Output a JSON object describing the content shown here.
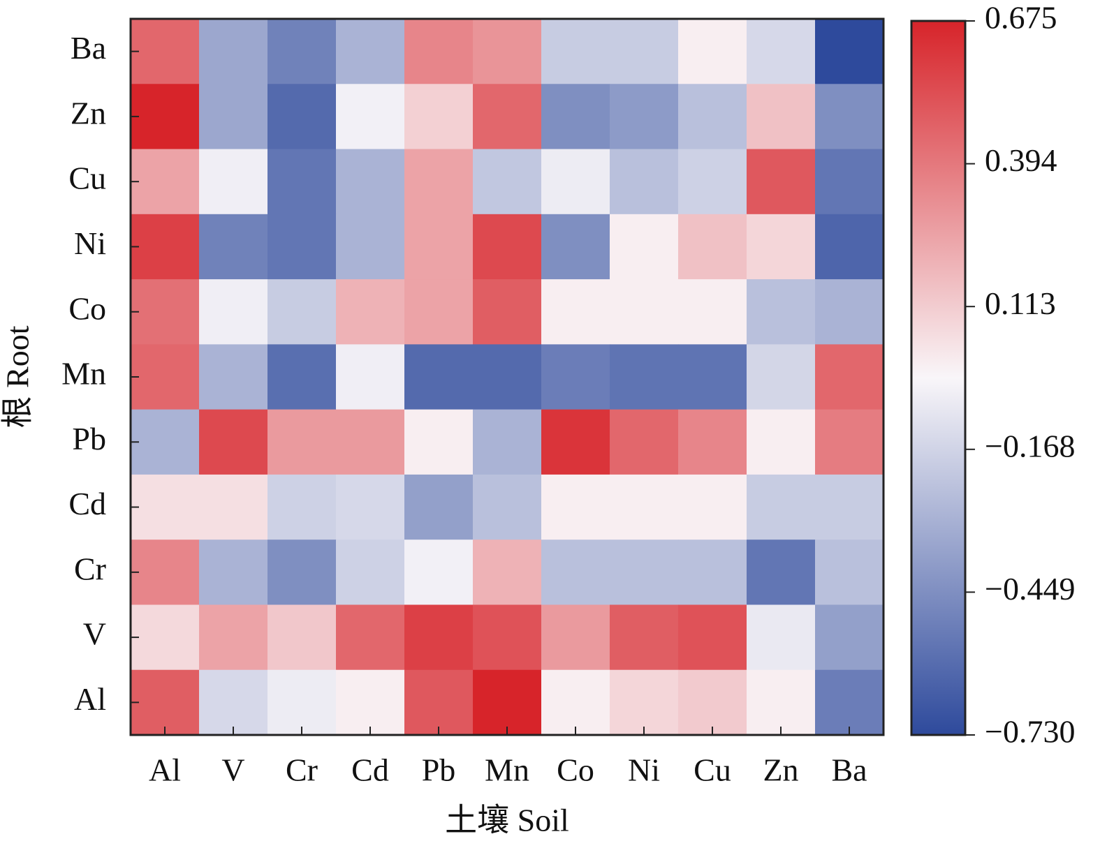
{
  "chart_data": {
    "type": "heatmap",
    "x_label": "土壤 Soil",
    "y_label": "根 Root",
    "x_categories": [
      "Al",
      "V",
      "Cr",
      "Cd",
      "Pb",
      "Mn",
      "Co",
      "Ni",
      "Cu",
      "Zn",
      "Ba"
    ],
    "y_categories": [
      "Ba",
      "Zn",
      "Cu",
      "Ni",
      "Co",
      "Mn",
      "Pb",
      "Cd",
      "Cr",
      "V",
      "Al"
    ],
    "values": [
      [
        0.45,
        -0.35,
        -0.5,
        -0.3,
        0.35,
        0.3,
        -0.2,
        -0.2,
        0.0,
        -0.15,
        -0.73
      ],
      [
        0.675,
        -0.35,
        -0.6,
        -0.05,
        0.1,
        0.45,
        -0.45,
        -0.4,
        -0.25,
        0.15,
        -0.45
      ],
      [
        0.25,
        -0.06,
        -0.55,
        -0.3,
        0.25,
        -0.22,
        -0.07,
        -0.25,
        -0.18,
        0.5,
        -0.55
      ],
      [
        0.58,
        -0.5,
        -0.55,
        -0.3,
        0.25,
        0.55,
        -0.45,
        0.0,
        0.15,
        0.08,
        -0.62
      ],
      [
        0.42,
        -0.06,
        -0.2,
        0.2,
        0.25,
        0.48,
        0.0,
        0.0,
        0.0,
        -0.25,
        -0.3
      ],
      [
        0.45,
        -0.3,
        -0.58,
        -0.06,
        -0.6,
        -0.6,
        -0.52,
        -0.56,
        -0.56,
        -0.16,
        0.45
      ],
      [
        -0.3,
        0.55,
        0.28,
        0.28,
        0.0,
        -0.3,
        0.62,
        0.45,
        0.35,
        0.0,
        0.38
      ],
      [
        0.05,
        0.05,
        -0.18,
        -0.15,
        -0.38,
        -0.25,
        0.0,
        0.0,
        0.0,
        -0.2,
        -0.2
      ],
      [
        0.35,
        -0.3,
        -0.45,
        -0.18,
        -0.05,
        0.2,
        -0.25,
        -0.25,
        -0.25,
        -0.55,
        -0.25
      ],
      [
        0.07,
        0.25,
        0.13,
        0.45,
        0.58,
        0.52,
        0.28,
        0.48,
        0.52,
        -0.08,
        -0.38
      ],
      [
        0.48,
        -0.15,
        -0.07,
        0.0,
        0.5,
        0.675,
        0.0,
        0.08,
        0.12,
        0.0,
        -0.52
      ]
    ],
    "colormap": [
      "#2e4a9c",
      "#f9f6f9",
      "#d7242a"
    ],
    "zlim": [
      -0.73,
      0.675
    ],
    "zticks": [
      0.675,
      0.394,
      0.113,
      {
        "value": -0.168,
        "label": "−0.168"
      },
      {
        "value": -0.449,
        "label": "−0.449"
      },
      {
        "value": -0.73,
        "label": "−0.730"
      }
    ]
  }
}
